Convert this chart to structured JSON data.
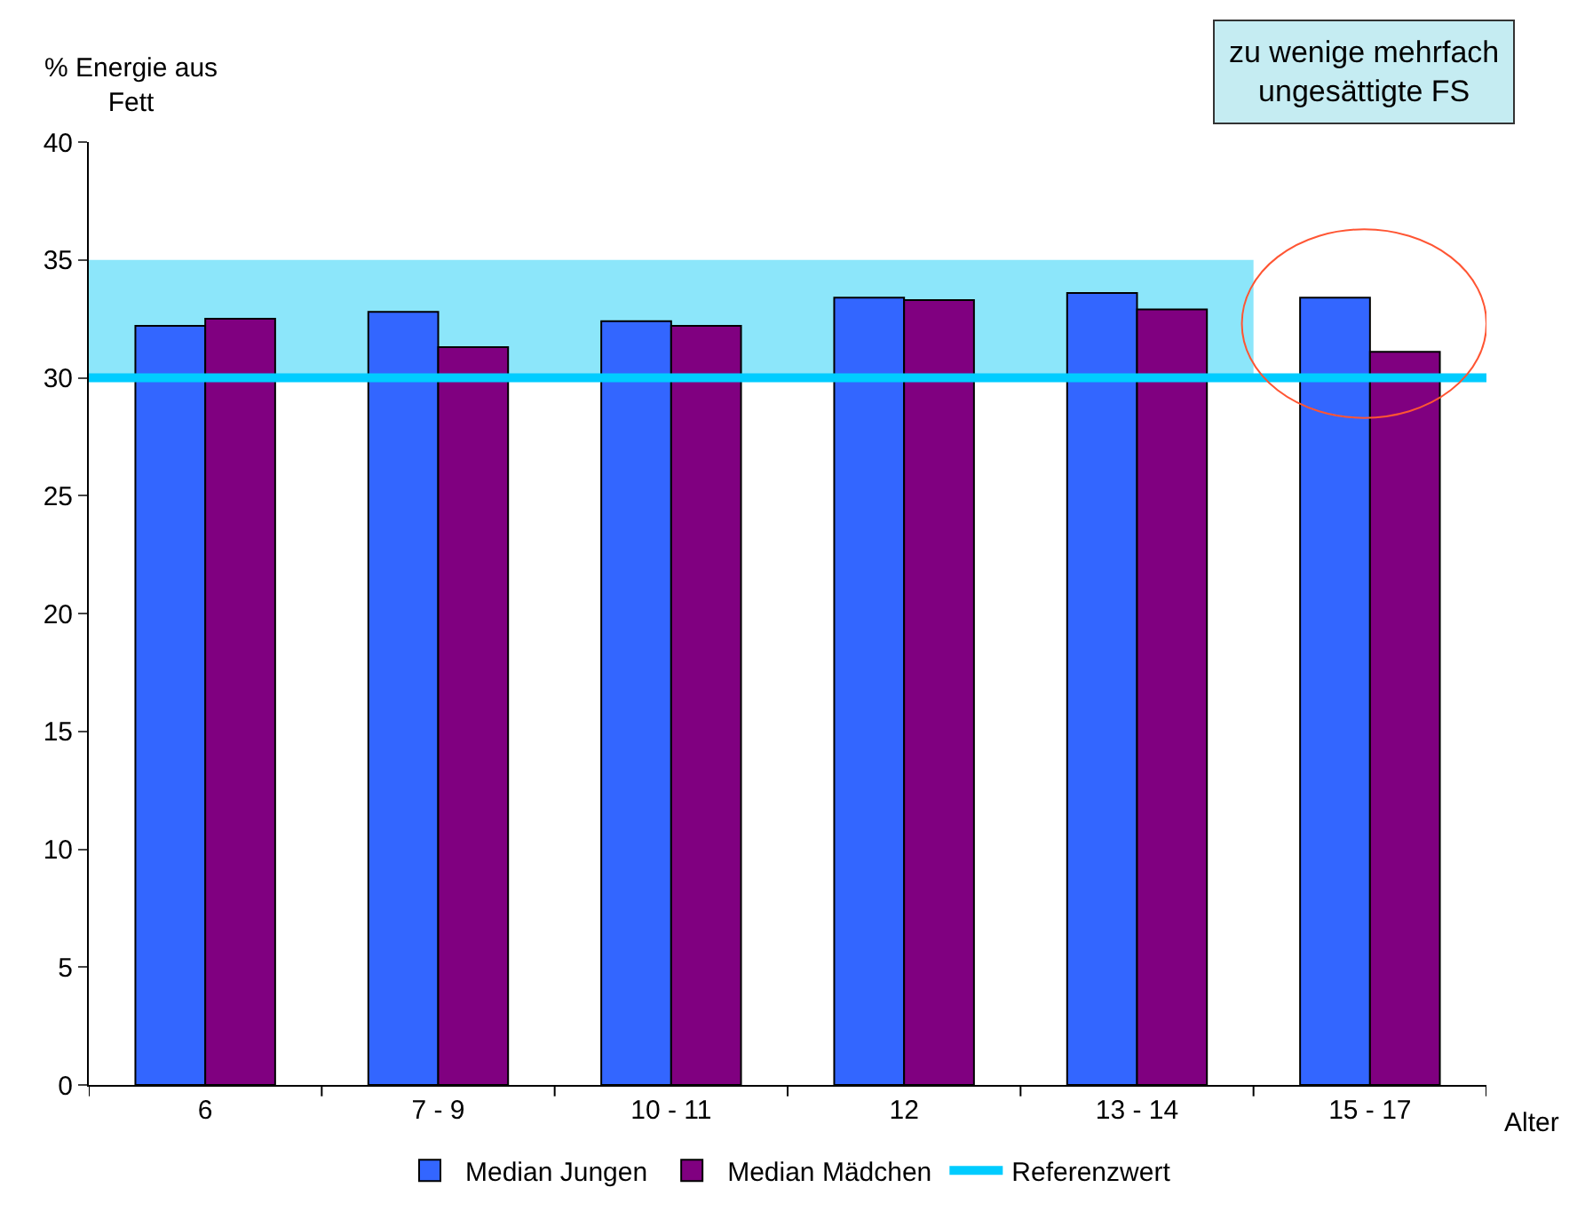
{
  "chart_data": {
    "type": "bar",
    "ylabel": "% Energie aus Fett",
    "xlabel": "Alter",
    "categories": [
      "6",
      "7 - 9",
      "10 - 11",
      "12",
      "13 - 14",
      "15 - 17"
    ],
    "series": [
      {
        "name": "Median Jungen",
        "color": "#3366ff",
        "values": [
          32.2,
          32.8,
          32.4,
          33.4,
          33.6,
          33.4
        ]
      },
      {
        "name": "Median Mädchen",
        "color": "#800080",
        "values": [
          32.5,
          31.3,
          32.2,
          33.3,
          32.9,
          31.1
        ]
      }
    ],
    "ylim": [
      0,
      40
    ],
    "yticks": [
      0,
      5,
      10,
      15,
      20,
      25,
      30,
      35,
      40
    ],
    "grid": false,
    "legend": "bottom",
    "ref_lines": [
      {
        "axis": "y",
        "value": 30,
        "label": "Referenzwert",
        "color": "#00ccff"
      }
    ],
    "bands": [
      {
        "axis": "y",
        "from": 30,
        "to": 35,
        "color": "#8ce6fa"
      }
    ],
    "annotations": [
      "zu wenige mehrfach ungesättigte FS"
    ]
  }
}
